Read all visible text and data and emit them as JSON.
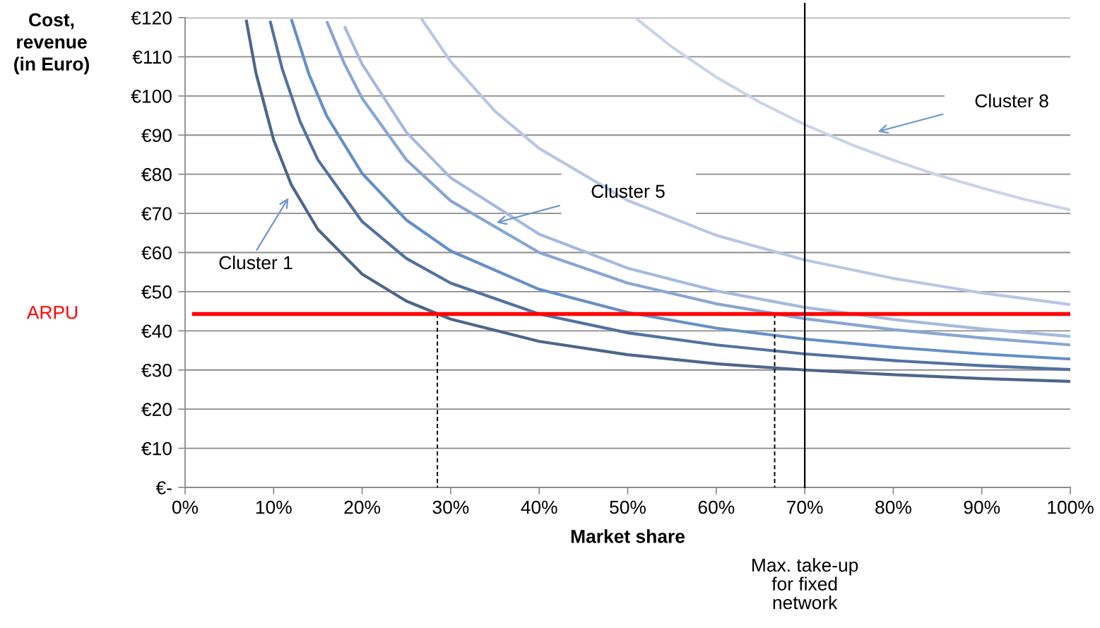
{
  "chart_data": {
    "type": "line",
    "xlabel": "Market share",
    "ylabel": "Cost,\nrevenue\n(in Euro)",
    "xlim": [
      0,
      100
    ],
    "ylim": [
      0,
      120
    ],
    "xticks": [
      {
        "value": 0,
        "label": "0%"
      },
      {
        "value": 10,
        "label": "10%"
      },
      {
        "value": 20,
        "label": "20%"
      },
      {
        "value": 30,
        "label": "30%"
      },
      {
        "value": 40,
        "label": "40%"
      },
      {
        "value": 50,
        "label": "50%"
      },
      {
        "value": 60,
        "label": "60%"
      },
      {
        "value": 70,
        "label": "70%"
      },
      {
        "value": 80,
        "label": "80%"
      },
      {
        "value": 90,
        "label": "90%"
      },
      {
        "value": 100,
        "label": "100%"
      }
    ],
    "yticks": [
      {
        "value": 0,
        "label": "€-"
      },
      {
        "value": 10,
        "label": "€10"
      },
      {
        "value": 20,
        "label": "€20"
      },
      {
        "value": 30,
        "label": "€30"
      },
      {
        "value": 40,
        "label": "€40"
      },
      {
        "value": 50,
        "label": "€50"
      },
      {
        "value": 60,
        "label": "€60"
      },
      {
        "value": 70,
        "label": "€70"
      },
      {
        "value": 80,
        "label": "€80"
      },
      {
        "value": 90,
        "label": "€90"
      },
      {
        "value": 100,
        "label": "€100"
      },
      {
        "value": 110,
        "label": "€110"
      },
      {
        "value": 120,
        "label": "€120"
      }
    ],
    "grid": "y",
    "marker": "none",
    "line_style": "solid",
    "legend": false,
    "series": [
      {
        "color": "#4d6689",
        "x": [
          6.9,
          8,
          10,
          12,
          15,
          20,
          25,
          30,
          40,
          50,
          60,
          70,
          80,
          90,
          100
        ],
        "values": [
          119.5,
          105.9,
          88.8,
          77.3,
          65.9,
          54.5,
          47.6,
          43.0,
          37.3,
          33.9,
          31.6,
          30.0,
          28.8,
          27.8,
          27.1
        ]
      },
      {
        "color": "#52729f",
        "x": [
          9.6,
          11,
          13,
          15,
          20,
          25,
          30,
          40,
          50,
          60,
          70,
          80,
          90,
          100
        ],
        "values": [
          119.2,
          106.7,
          93.4,
          83.7,
          67.9,
          58.5,
          52.2,
          44.3,
          39.5,
          36.4,
          34.1,
          32.4,
          31.1,
          30.1
        ]
      },
      {
        "color": "#658fc5",
        "x": [
          12,
          14,
          16,
          20,
          25,
          30,
          40,
          50,
          60,
          70,
          80,
          90,
          100
        ],
        "values": [
          119.6,
          105.5,
          94.9,
          80.2,
          68.3,
          60.4,
          50.6,
          44.7,
          40.7,
          37.9,
          35.8,
          34.1,
          32.8
        ]
      },
      {
        "color": "#88a6d2",
        "x": [
          16,
          18,
          20,
          25,
          30,
          40,
          50,
          60,
          70,
          80,
          90,
          100
        ],
        "values": [
          119.1,
          108.2,
          99.4,
          83.7,
          73.2,
          60.0,
          52.2,
          46.9,
          43.1,
          40.3,
          38.2,
          36.4
        ]
      },
      {
        "color": "#a5badc",
        "x": [
          18,
          20,
          25,
          30,
          40,
          50,
          60,
          70,
          80,
          90,
          100
        ],
        "values": [
          117.8,
          108.1,
          90.7,
          79.1,
          64.7,
          56.0,
          50.2,
          46.0,
          42.9,
          40.5,
          38.6
        ]
      },
      {
        "color": "#b8c7e2",
        "x": [
          26.7,
          30,
          35,
          40,
          50,
          60,
          70,
          80,
          90,
          100
        ],
        "values": [
          119.7,
          108.8,
          96.1,
          86.6,
          73.3,
          64.4,
          58.1,
          53.4,
          49.7,
          46.7
        ]
      },
      {
        "color": "#cad4e8",
        "x": [
          51,
          55,
          60,
          65,
          70,
          75,
          80,
          85,
          90,
          95,
          100
        ],
        "values": [
          119.7,
          112.5,
          104.8,
          98.3,
          92.7,
          87.8,
          83.6,
          79.8,
          76.5,
          73.5,
          70.9
        ]
      },
      {
        "color": "#000000",
        "line_style": "dashed",
        "x": [
          28.5,
          28.5
        ],
        "values": [
          44.3,
          0
        ]
      },
      {
        "color": "#000000",
        "line_style": "dashed",
        "x": [
          66.6,
          66.6
        ],
        "values": [
          44.3,
          0
        ]
      }
    ],
    "ref_lines": [
      {
        "axis": "y",
        "value": 44.3,
        "label": "ARPU",
        "color": "#ff0000"
      },
      {
        "axis": "x",
        "value": 70,
        "label": "Max. take-up\nfor fixed\nnetwork",
        "color": "#000000"
      }
    ],
    "annotations": [
      "Cluster 1",
      "Cluster 5",
      "Cluster 8"
    ]
  }
}
